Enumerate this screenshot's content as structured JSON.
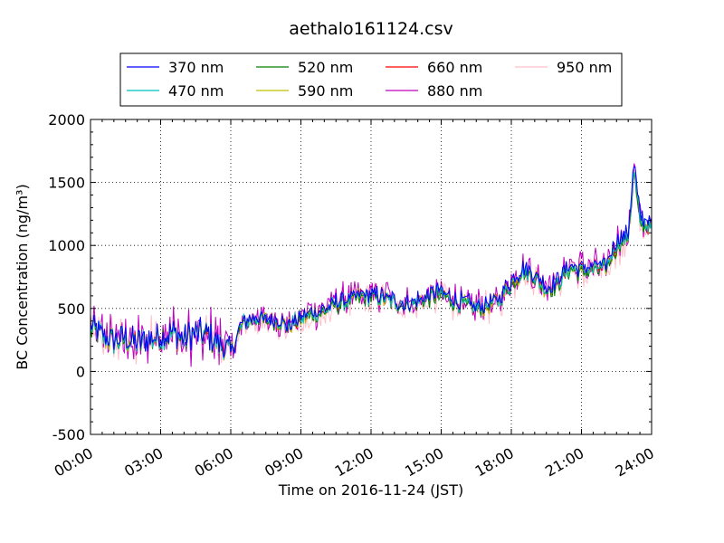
{
  "chart_data": {
    "type": "line",
    "title": "aethalo161124.csv",
    "xlabel": "Time on 2016-11-24 (JST)",
    "ylabel": "BC Concentration (ng/m³)",
    "x_ticks": [
      "00:00",
      "03:00",
      "06:00",
      "09:00",
      "12:00",
      "15:00",
      "18:00",
      "21:00",
      "24:00"
    ],
    "x_tick_hours": [
      0,
      3,
      6,
      9,
      12,
      15,
      18,
      21,
      24
    ],
    "xlim_hours": [
      0,
      24
    ],
    "y_ticks": [
      "-500",
      "0",
      "500",
      "1000",
      "1500",
      "2000"
    ],
    "y_tick_values": [
      -500,
      0,
      500,
      1000,
      1500,
      2000
    ],
    "ylim": [
      -500,
      2000
    ],
    "grid": true,
    "legend_position": "top",
    "legend_columns": 4,
    "trend_hours": [
      0,
      0.5,
      1,
      1.5,
      2,
      2.5,
      3,
      3.5,
      4,
      4.5,
      5,
      5.5,
      6,
      6.5,
      7,
      7.5,
      8,
      8.5,
      9,
      9.5,
      10,
      10.5,
      11,
      11.5,
      12,
      12.5,
      13,
      13.5,
      14,
      14.5,
      15,
      15.5,
      16,
      16.5,
      17,
      17.5,
      18,
      18.5,
      19,
      19.5,
      20,
      20.5,
      21,
      21.5,
      22,
      22.5,
      23,
      23.25,
      23.5,
      24
    ],
    "trend_values": [
      350,
      280,
      240,
      260,
      230,
      250,
      280,
      300,
      260,
      300,
      290,
      220,
      150,
      380,
      420,
      410,
      400,
      360,
      420,
      460,
      480,
      540,
      560,
      600,
      600,
      580,
      550,
      530,
      560,
      590,
      620,
      560,
      540,
      500,
      520,
      580,
      700,
      800,
      760,
      650,
      700,
      830,
      800,
      820,
      820,
      1000,
      1080,
      1600,
      1200,
      1150
    ],
    "series": [
      {
        "name": "370 nm",
        "color": "#0000ff",
        "scale": 1.03
      },
      {
        "name": "470 nm",
        "color": "#00bfbf",
        "scale": 1.0
      },
      {
        "name": "520 nm",
        "color": "#008000",
        "scale": 0.98
      },
      {
        "name": "590 nm",
        "color": "#bfbf00",
        "scale": 0.99
      },
      {
        "name": "660 nm",
        "color": "#ff0000",
        "scale": 1.0
      },
      {
        "name": "880 nm",
        "color": "#bf00bf",
        "scale": 1.02
      },
      {
        "name": "950 nm",
        "color": "#ffc0cb",
        "scale": 0.97
      }
    ]
  }
}
